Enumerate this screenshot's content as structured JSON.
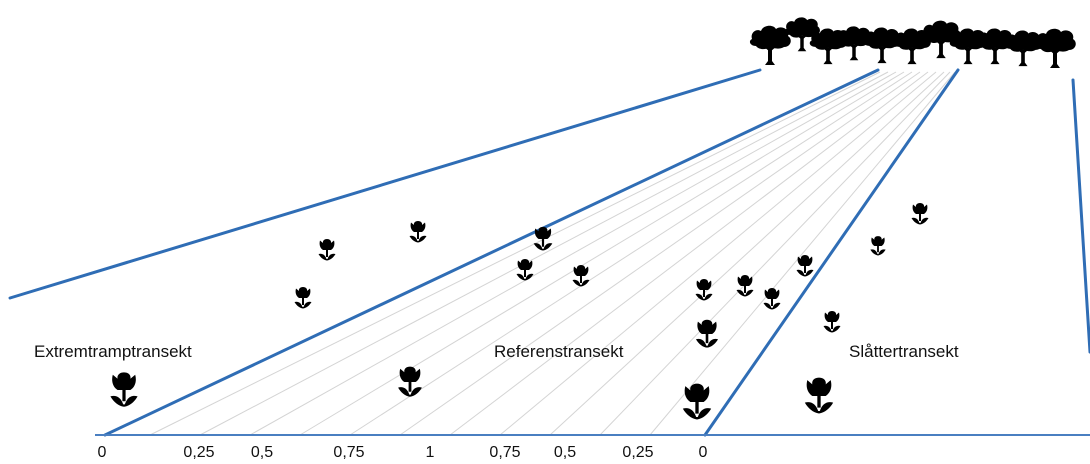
{
  "labels": {
    "left_region": "Extremtramptransekt",
    "middle_region": "Referenstransekt",
    "right_region": "Slåttertransekt"
  },
  "axis_ticks": [
    "0",
    "0,25",
    "0,5",
    "0,75",
    "1",
    "0,75",
    "0,5",
    "0,25",
    "0"
  ],
  "colors": {
    "transect_line": "#2f6db5",
    "ground_line": "#4a7fc1",
    "guide_line": "#d4d4d4",
    "silhouette": "#000000"
  },
  "icons": {
    "flower": "tulip-icon",
    "tree": "tree-icon"
  }
}
